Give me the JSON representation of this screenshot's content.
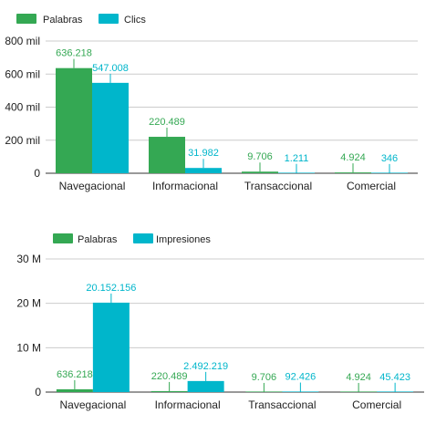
{
  "chart_data": [
    {
      "type": "bar",
      "categories": [
        "Navegacional",
        "Informacional",
        "Transaccional",
        "Comercial"
      ],
      "series": [
        {
          "name": "Palabras",
          "color": "#34a853",
          "values": [
            636218,
            220489,
            9706,
            4924
          ],
          "labels": [
            "636.218",
            "220.489",
            "9.706",
            "4.924"
          ]
        },
        {
          "name": "Clics",
          "color": "#00b6cb",
          "values": [
            547008,
            31982,
            1211,
            346
          ],
          "labels": [
            "547.008",
            "31.982",
            "1.211",
            "346"
          ]
        }
      ],
      "ylim": [
        0,
        800000
      ],
      "yticks": [
        0,
        200000,
        400000,
        600000,
        800000
      ],
      "ytick_labels": [
        "0",
        "200 mil",
        "400 mil",
        "600 mil",
        "800 mil"
      ],
      "grid": true,
      "legend_position": "top-left"
    },
    {
      "type": "bar",
      "categories": [
        "Navegacional",
        "Informacional",
        "Transaccional",
        "Comercial"
      ],
      "series": [
        {
          "name": "Palabras",
          "color": "#34a853",
          "values": [
            636218,
            220489,
            9706,
            4924
          ],
          "labels": [
            "636.218",
            "220.489",
            "9.706",
            "4.924"
          ]
        },
        {
          "name": "Impresiones",
          "color": "#00b6cb",
          "values": [
            20152156,
            2492219,
            92426,
            45423
          ],
          "labels": [
            "20.152.156",
            "2.492.219",
            "92.426",
            "45.423"
          ]
        }
      ],
      "ylim": [
        0,
        30000000
      ],
      "yticks": [
        0,
        10000000,
        20000000,
        30000000
      ],
      "ytick_labels": [
        "0",
        "10 M",
        "20 M",
        "30 M"
      ],
      "grid": true,
      "legend_position": "top-left"
    }
  ]
}
